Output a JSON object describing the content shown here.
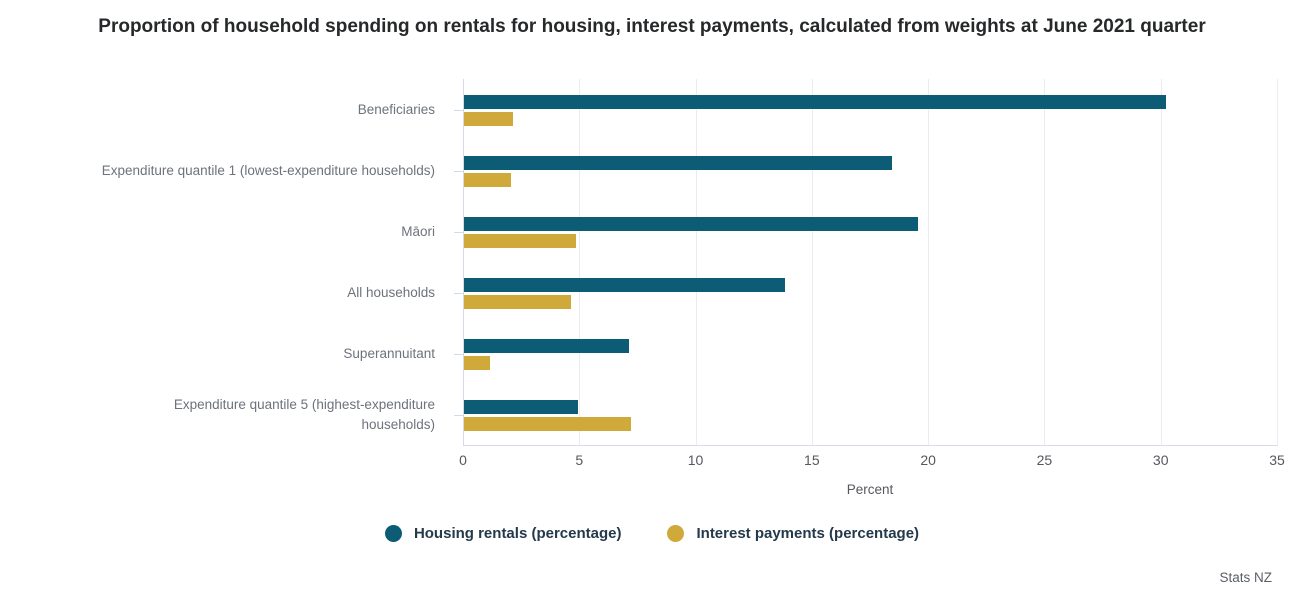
{
  "chart_data": {
    "type": "bar",
    "orientation": "horizontal",
    "title": "Proportion of household spending on rentals for housing, interest payments, calculated from weights at June 2021 quarter",
    "categories": [
      "Beneficiaries",
      "Expenditure quantile 1 (lowest-expenditure households)",
      "Māori",
      "All households",
      "Superannuitant",
      "Expenditure quantile 5 (highest-expenditure\nhouseholds)"
    ],
    "series": [
      {
        "name": "Housing rentals (percentage)",
        "color": "#0D5C75",
        "values": [
          30.2,
          18.4,
          19.5,
          13.8,
          7.1,
          4.9
        ]
      },
      {
        "name": "Interest payments (percentage)",
        "color": "#CFA93A",
        "values": [
          2.1,
          2.0,
          4.8,
          4.6,
          1.1,
          7.2
        ]
      }
    ],
    "xlabel": "Percent",
    "xlim": [
      0,
      35
    ],
    "xticks": [
      0,
      5,
      10,
      15,
      20,
      25,
      30,
      35
    ],
    "grid": true,
    "legend_position": "bottom",
    "axis_line_color": "#d4d9e8",
    "gridline_color": "#ececf0"
  },
  "source": "Stats NZ"
}
